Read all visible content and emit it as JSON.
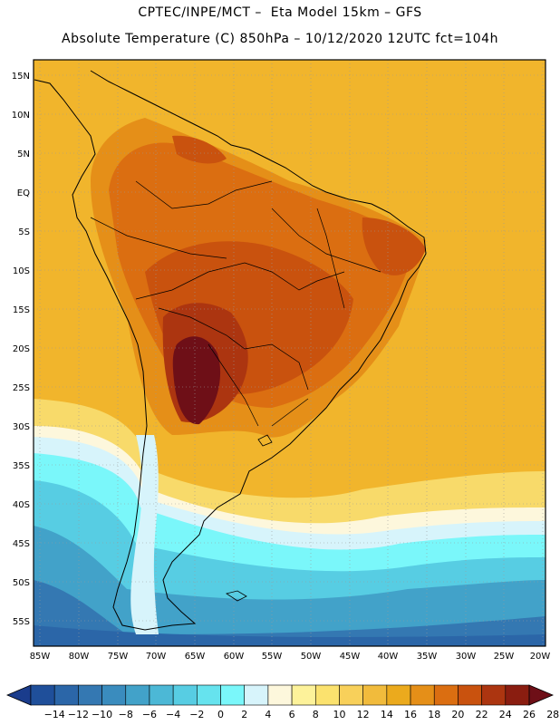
{
  "header": {
    "line1": "CPTEC/INPE/MCT –  Eta Model 15km – GFS",
    "line2": "Absolute Temperature (C) 850hPa – 10/12/2020 12UTC fct=104h"
  },
  "map": {
    "lat_labels": [
      "15N",
      "10N",
      "5N",
      "EQ",
      "5S",
      "10S",
      "15S",
      "20S",
      "25S",
      "30S",
      "35S",
      "40S",
      "45S",
      "50S",
      "55S"
    ],
    "lon_labels": [
      "85W",
      "80W",
      "75W",
      "70W",
      "65W",
      "60W",
      "55W",
      "50W",
      "45W",
      "40W",
      "35W",
      "30W",
      "25W",
      "20W"
    ]
  },
  "colorbar": {
    "labels": [
      "-14",
      "-12",
      "-10",
      "-8",
      "-6",
      "-4",
      "-2",
      "0",
      "2",
      "4",
      "6",
      "8",
      "10",
      "12",
      "14",
      "16",
      "18",
      "20",
      "22",
      "24",
      "26",
      "28"
    ],
    "colors": [
      "#1a3c8c",
      "#1f4f9a",
      "#2b66a8",
      "#3478b2",
      "#3a8cbe",
      "#42a2c9",
      "#4cb8d6",
      "#57cde3",
      "#66e3ee",
      "#7af7fa",
      "#d7f4fb",
      "#fdf7dc",
      "#fdf29a",
      "#fbe26e",
      "#f8d05a",
      "#f1bb3c",
      "#ebaa1d",
      "#e58f18",
      "#db6e11",
      "#c9520e",
      "#ac3510",
      "#8a1d10",
      "#6e0f17"
    ]
  }
}
